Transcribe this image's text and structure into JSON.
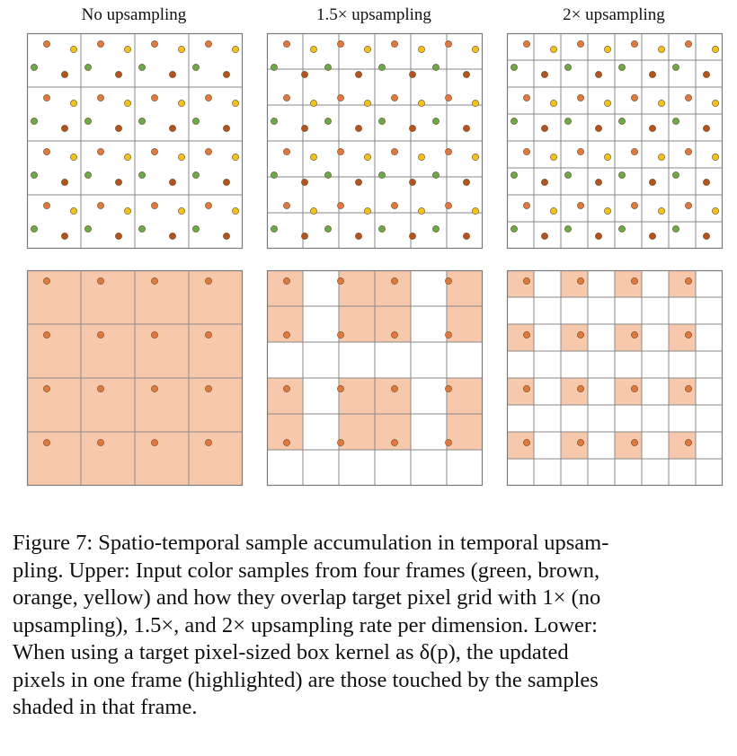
{
  "panels": [
    {
      "id": "p1",
      "title": "No upsampling",
      "rate": 1.0
    },
    {
      "id": "p2",
      "title": "1.5× upsampling",
      "rate": 1.5
    },
    {
      "id": "p3",
      "title": "2× upsampling",
      "rate": 2.0
    }
  ],
  "sample_colors": {
    "orange": "#e3783e",
    "yellow": "#f2c21c",
    "green": "#6aaa4a",
    "brown": "#b5531e"
  },
  "highlight_color": "#f7c8ab",
  "caption": {
    "lines": [
      "Figure 7: Spatio-temporal sample accumulation in temporal upsam-",
      "pling. Upper: Input color samples from four frames (green, brown,",
      "orange, yellow) and how they overlap target pixel grid with 1× (no",
      "upsampling), 1.5×, and 2× upsampling rate per dimension. Lower:",
      "When using a target pixel-sized box kernel as δ(p), the updated",
      "pixels in one frame (highlighted) are those touched by the samples",
      "shaded in that frame."
    ]
  }
}
